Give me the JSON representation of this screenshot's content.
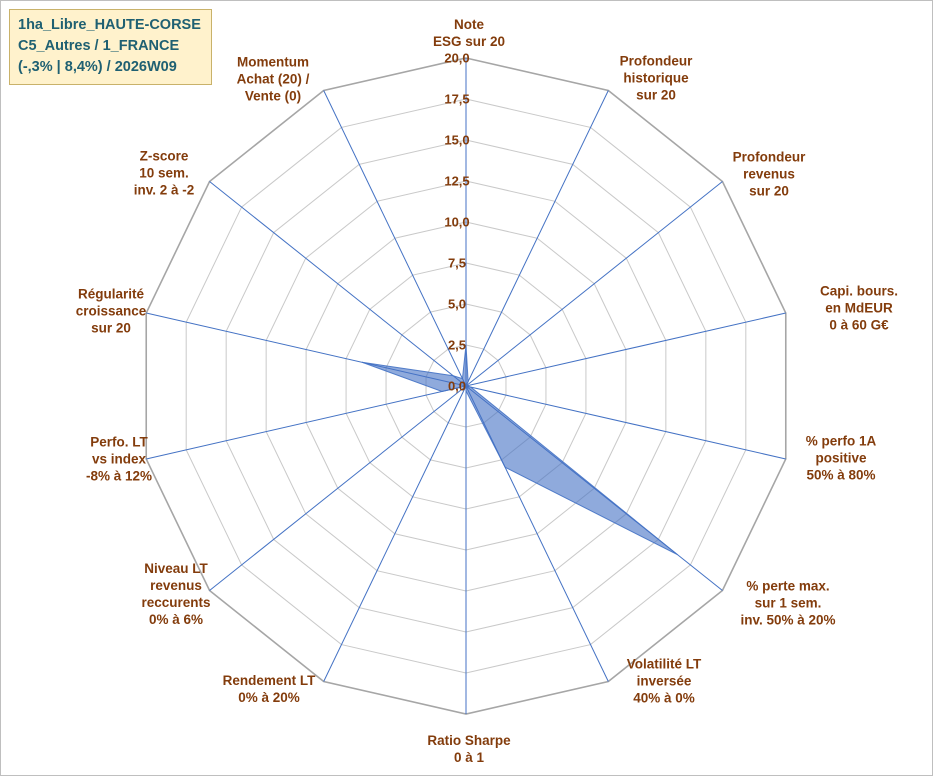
{
  "info_box": {
    "line1": "1ha_Libre_HAUTE-CORSE",
    "line2": "C5_Autres / 1_FRANCE",
    "line3": "(-,3% | 8,4%) / 2026W09",
    "background": "#FFF2CC",
    "text_color": "#1F6072"
  },
  "chart_data": {
    "type": "radar",
    "rmin": 0,
    "rmax": 20,
    "ring_step": 2.5,
    "grid": true,
    "legend": "none",
    "radial_ticks": [
      "0,0",
      "2,5",
      "5,0",
      "7,5",
      "10,0",
      "12,5",
      "15,0",
      "17,5",
      "20,0"
    ],
    "axes": [
      {
        "label_lines": [
          "Note",
          "ESG sur 20"
        ],
        "value": 2.5
      },
      {
        "label_lines": [
          "Profondeur",
          "historique",
          "sur 20"
        ],
        "value": 0.3
      },
      {
        "label_lines": [
          "Profondeur",
          "revenus",
          "sur 20"
        ],
        "value": 0
      },
      {
        "label_lines": [
          "Capi. bours.",
          "en MdEUR",
          "0 à 60 G€"
        ],
        "value": 0
      },
      {
        "label_lines": [
          "% perfo 1A",
          "positive",
          "50% à 80%"
        ],
        "value": 0.3
      },
      {
        "label_lines": [
          "% perte max.",
          "sur 1 sem.",
          "inv. 50% à 20%"
        ],
        "value": 16.5
      },
      {
        "label_lines": [
          "Volatilité LT",
          "inversée",
          "40% à 0%"
        ],
        "value": 5.5
      },
      {
        "label_lines": [
          "Ratio Sharpe",
          "0 à 1"
        ],
        "value": 0.3
      },
      {
        "label_lines": [
          "Rendement LT",
          "0% à 20%"
        ],
        "value": 0
      },
      {
        "label_lines": [
          "Niveau LT",
          "revenus",
          "reccurents",
          "0% à 6%"
        ],
        "value": 0
      },
      {
        "label_lines": [
          "Perfo. LT",
          "vs index",
          "-8% à 12%"
        ],
        "value": 1.5
      },
      {
        "label_lines": [
          "Régularité",
          "croissance",
          "sur 20"
        ],
        "value": 6.5
      },
      {
        "label_lines": [
          "Z-score",
          "10 sem.",
          "inv. 2 à -2"
        ],
        "value": 1
      },
      {
        "label_lines": [
          "Momentum",
          "Achat (20) /",
          "Vente (0)"
        ],
        "value": 0.5
      }
    ],
    "series_fill_color": "#4472C4",
    "series_fill_opacity": 0.6,
    "spoke_color": "#4472C4",
    "grid_color": "#C9C9C9",
    "outer_grid_color": "#A6A6A6",
    "label_color": "#833C0C"
  }
}
